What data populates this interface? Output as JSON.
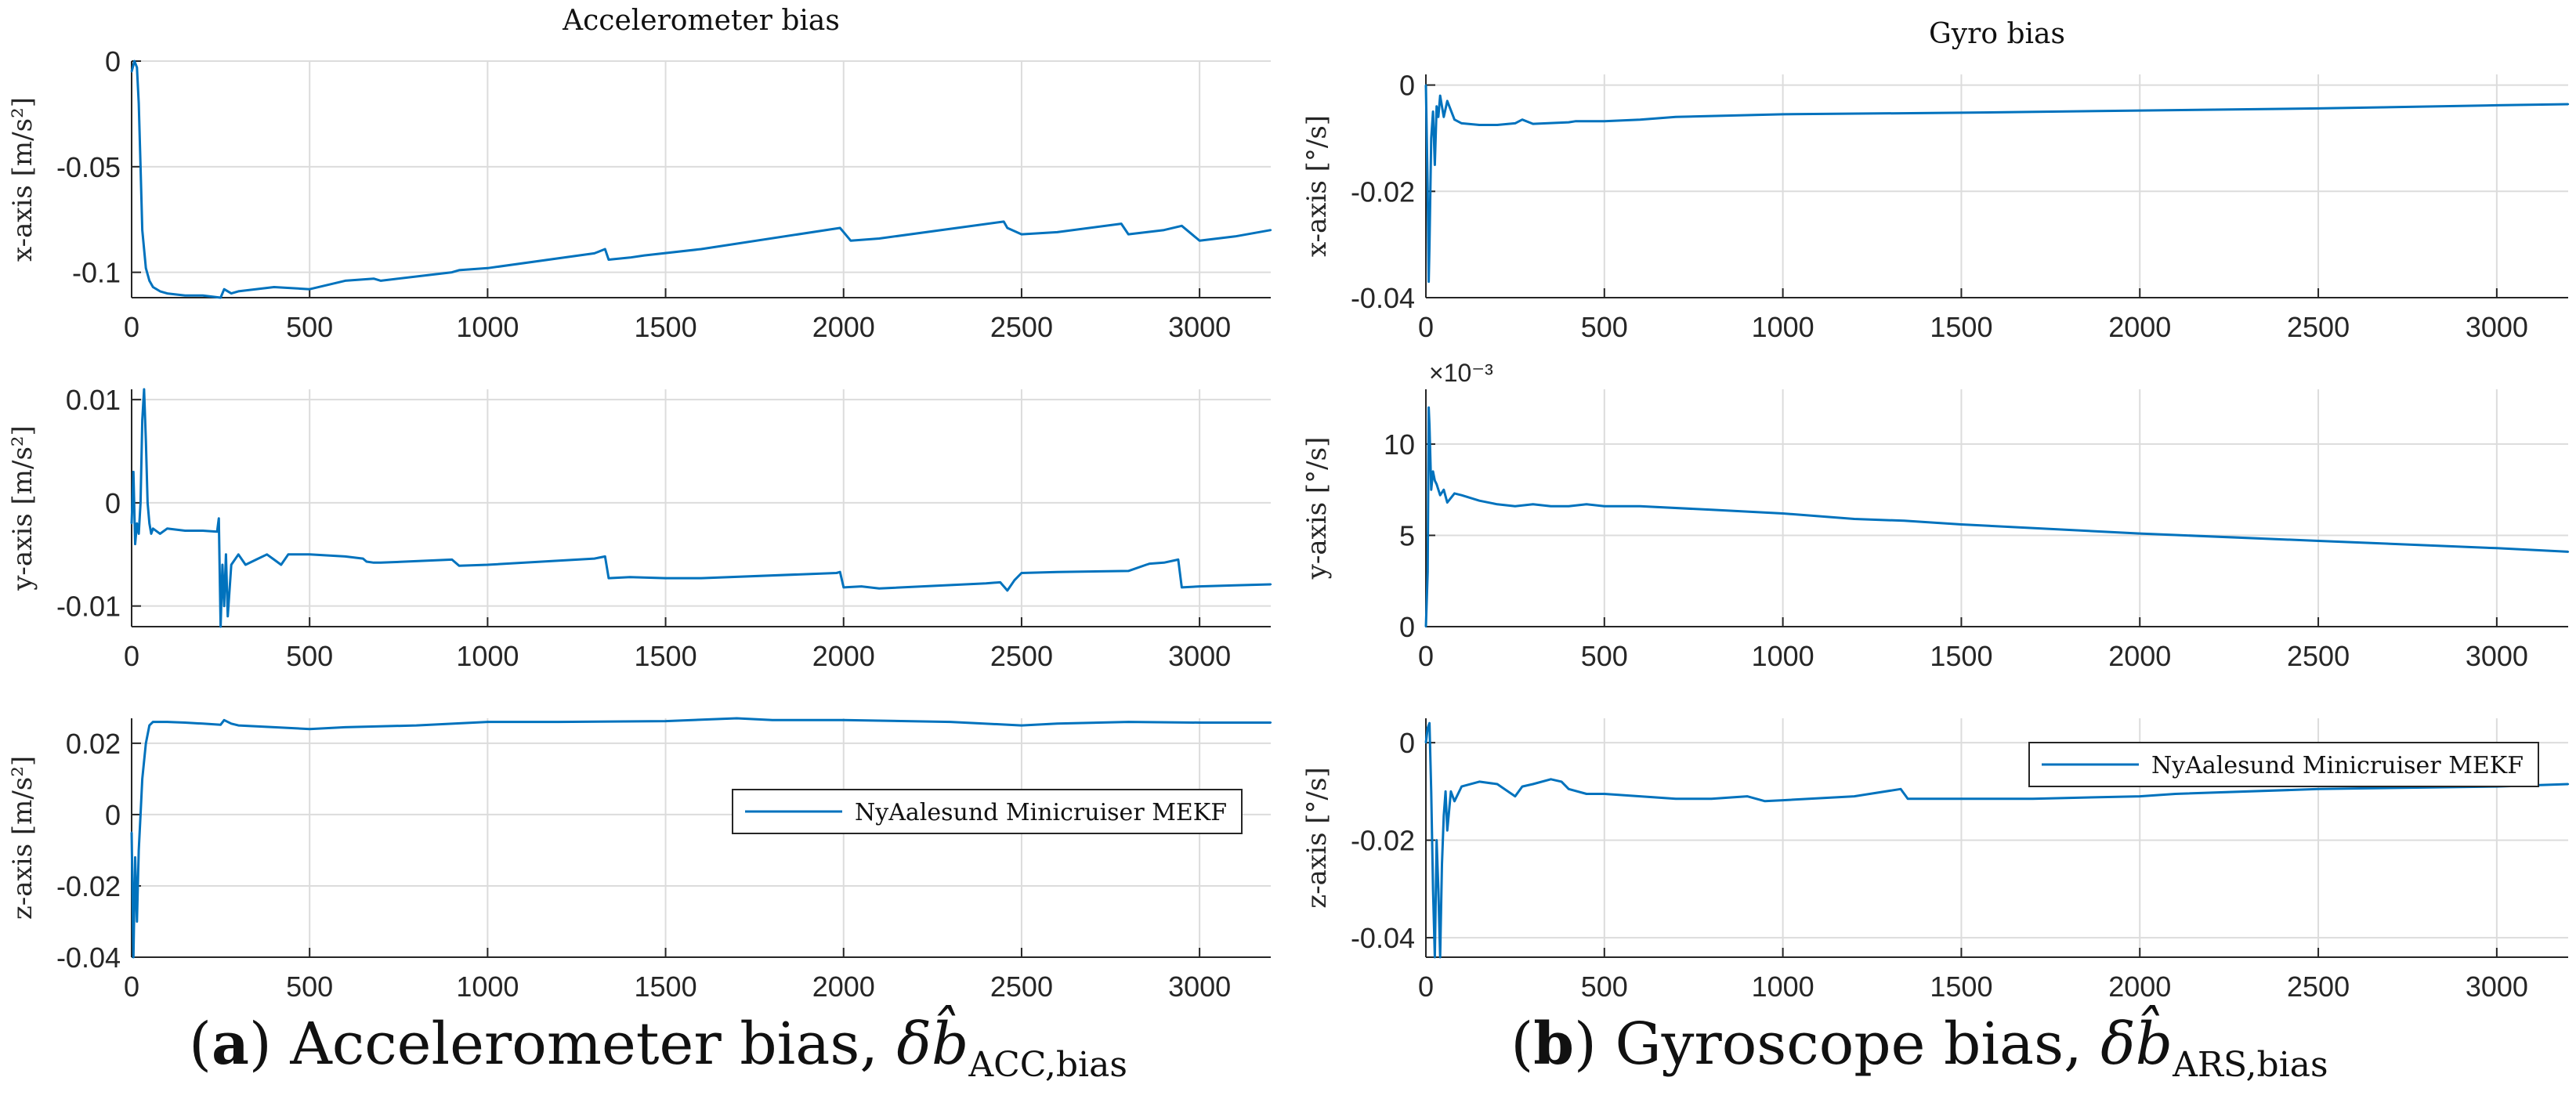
{
  "figure": {
    "captions": [
      {
        "letter": "a",
        "text": "Accelerometer bias, ",
        "symbol": "δb̂",
        "subscript": "ACC,bias"
      },
      {
        "letter": "b",
        "text": "Gyroscope bias, ",
        "symbol": "δb̂",
        "subscript": "ARS,bias"
      }
    ]
  },
  "chart_data": [
    {
      "type": "line",
      "title": "Accelerometer bias",
      "xlabel": "",
      "ylabel": "x-axis [m/s²]",
      "xlim": [
        0,
        3200
      ],
      "ylim": [
        -0.112,
        0
      ],
      "xticks": [
        0,
        500,
        1000,
        1500,
        2000,
        2500,
        3000
      ],
      "xtick_labels": [
        "0",
        "500",
        "1000",
        "1500",
        "2000",
        "2500",
        "3000"
      ],
      "yticks": [
        0,
        -0.05,
        -0.1
      ],
      "ytick_labels": [
        "0",
        "-0.05",
        "-0.1"
      ],
      "grid": true,
      "exponent_label": "",
      "legend": "",
      "series": [
        {
          "name": "NyAalesund Minicruiser MEKF",
          "color": "#0072BD",
          "x": [
            0,
            8,
            15,
            20,
            25,
            30,
            40,
            50,
            60,
            80,
            100,
            150,
            200,
            250,
            260,
            280,
            300,
            400,
            500,
            600,
            680,
            700,
            900,
            920,
            1000,
            1300,
            1330,
            1340,
            1400,
            1440,
            1600,
            1990,
            2000,
            2020,
            2100,
            2450,
            2460,
            2500,
            2600,
            2780,
            2800,
            2900,
            2950,
            3000,
            3100,
            3200
          ],
          "y": [
            -0.005,
            0,
            -0.003,
            -0.02,
            -0.05,
            -0.08,
            -0.098,
            -0.104,
            -0.107,
            -0.109,
            -0.11,
            -0.111,
            -0.111,
            -0.112,
            -0.108,
            -0.11,
            -0.109,
            -0.107,
            -0.108,
            -0.104,
            -0.103,
            -0.104,
            -0.1,
            -0.099,
            -0.098,
            -0.091,
            -0.089,
            -0.094,
            -0.093,
            -0.092,
            -0.089,
            -0.079,
            -0.081,
            -0.085,
            -0.084,
            -0.076,
            -0.079,
            -0.082,
            -0.081,
            -0.077,
            -0.082,
            -0.08,
            -0.078,
            -0.085,
            -0.083,
            -0.08
          ]
        }
      ]
    },
    {
      "type": "line",
      "title": "",
      "xlabel": "",
      "ylabel": "y-axis [m/s²]",
      "xlim": [
        0,
        3200
      ],
      "ylim": [
        -0.012,
        0.011
      ],
      "xticks": [
        0,
        500,
        1000,
        1500,
        2000,
        2500,
        3000
      ],
      "xtick_labels": [
        "0",
        "500",
        "1000",
        "1500",
        "2000",
        "2500",
        "3000"
      ],
      "yticks": [
        0.01,
        0,
        -0.01
      ],
      "ytick_labels": [
        "0.01",
        "0",
        "-0.01"
      ],
      "grid": true,
      "exponent_label": "",
      "legend": "",
      "series": [
        {
          "name": "NyAalesund Minicruiser MEKF",
          "color": "#0072BD",
          "x": [
            0,
            5,
            10,
            15,
            20,
            25,
            30,
            35,
            40,
            45,
            50,
            55,
            60,
            80,
            100,
            150,
            200,
            240,
            245,
            248,
            250,
            255,
            260,
            265,
            270,
            280,
            300,
            320,
            350,
            380,
            400,
            420,
            440,
            500,
            600,
            650,
            660,
            680,
            700,
            900,
            920,
            1000,
            1300,
            1330,
            1340,
            1400,
            1500,
            1600,
            1980,
            1990,
            2000,
            2050,
            2100,
            2400,
            2440,
            2460,
            2480,
            2500,
            2600,
            2800,
            2850,
            2860,
            2900,
            2940,
            2950,
            3000,
            3100,
            3200
          ],
          "y": [
            -0.002,
            0.003,
            -0.004,
            -0.002,
            -0.003,
            0.0,
            0.008,
            0.011,
            0.006,
            0.0,
            -0.002,
            -0.003,
            -0.0025,
            -0.003,
            -0.0025,
            -0.0027,
            -0.0027,
            -0.0028,
            -0.0015,
            -0.008,
            -0.012,
            -0.006,
            -0.01,
            -0.005,
            -0.011,
            -0.006,
            -0.005,
            -0.006,
            -0.0055,
            -0.005,
            -0.0055,
            -0.006,
            -0.005,
            -0.005,
            -0.0052,
            -0.0054,
            -0.0057,
            -0.0058,
            -0.0058,
            -0.0055,
            -0.0061,
            -0.006,
            -0.0054,
            -0.0052,
            -0.0073,
            -0.0072,
            -0.0073,
            -0.0073,
            -0.0068,
            -0.0067,
            -0.0082,
            -0.0081,
            -0.0083,
            -0.0078,
            -0.0077,
            -0.0085,
            -0.0075,
            -0.0068,
            -0.0067,
            -0.0066,
            -0.006,
            -0.0059,
            -0.0058,
            -0.0055,
            -0.0082,
            -0.0081,
            -0.008,
            -0.0079
          ]
        }
      ]
    },
    {
      "type": "line",
      "title": "",
      "xlabel": "",
      "ylabel": "z-axis [m/s²]",
      "xlim": [
        0,
        3200
      ],
      "ylim": [
        -0.04,
        0.027
      ],
      "xticks": [
        0,
        500,
        1000,
        1500,
        2000,
        2500,
        3000
      ],
      "xtick_labels": [
        "0",
        "500",
        "1000",
        "1500",
        "2000",
        "2500",
        "3000"
      ],
      "yticks": [
        0.02,
        0,
        -0.02,
        -0.04
      ],
      "ytick_labels": [
        "0.02",
        "0",
        "-0.02",
        "-0.04"
      ],
      "grid": true,
      "exponent_label": "",
      "legend": "NyAalesund Minicruiser MEKF",
      "series": [
        {
          "name": "NyAalesund Minicruiser MEKF",
          "color": "#0072BD",
          "x": [
            0,
            5,
            10,
            15,
            20,
            25,
            30,
            40,
            50,
            60,
            80,
            100,
            150,
            200,
            250,
            260,
            280,
            300,
            400,
            500,
            600,
            800,
            1000,
            1200,
            1500,
            1700,
            1800,
            2000,
            2300,
            2500,
            2600,
            2800,
            3000,
            3200
          ],
          "y": [
            -0.005,
            -0.04,
            -0.012,
            -0.03,
            -0.01,
            0.0,
            0.01,
            0.02,
            0.025,
            0.026,
            0.026,
            0.026,
            0.0258,
            0.0255,
            0.0252,
            0.0265,
            0.0255,
            0.025,
            0.0245,
            0.024,
            0.0245,
            0.025,
            0.026,
            0.026,
            0.0262,
            0.027,
            0.0265,
            0.0265,
            0.026,
            0.025,
            0.0255,
            0.026,
            0.0258,
            0.0258
          ]
        }
      ]
    },
    {
      "type": "line",
      "title": "Gyro bias",
      "xlabel": "",
      "ylabel": "x-axis [°/s]",
      "xlim": [
        0,
        3200
      ],
      "ylim": [
        -0.04,
        0.002
      ],
      "xticks": [
        0,
        500,
        1000,
        1500,
        2000,
        2500,
        3000
      ],
      "xtick_labels": [
        "0",
        "500",
        "1000",
        "1500",
        "2000",
        "2500",
        "3000"
      ],
      "yticks": [
        0,
        -0.02,
        -0.04
      ],
      "ytick_labels": [
        "0",
        "-0.02",
        "-0.04"
      ],
      "grid": true,
      "exponent_label": "",
      "legend": "",
      "series": [
        {
          "name": "NyAalesund Minicruiser MEKF",
          "color": "#0072BD",
          "x": [
            0,
            5,
            8,
            10,
            15,
            20,
            25,
            30,
            35,
            40,
            50,
            60,
            80,
            100,
            150,
            200,
            250,
            270,
            300,
            400,
            420,
            500,
            600,
            700,
            1000,
            1500,
            2000,
            2500,
            3000,
            3200
          ],
          "y": [
            0.0,
            -0.02,
            -0.037,
            -0.03,
            -0.01,
            -0.005,
            -0.015,
            -0.004,
            -0.006,
            -0.002,
            -0.006,
            -0.003,
            -0.0065,
            -0.0072,
            -0.0075,
            -0.0075,
            -0.0072,
            -0.0065,
            -0.0073,
            -0.007,
            -0.0068,
            -0.0068,
            -0.0065,
            -0.006,
            -0.0055,
            -0.0052,
            -0.0048,
            -0.0044,
            -0.0038,
            -0.0036
          ]
        }
      ]
    },
    {
      "type": "line",
      "title": "",
      "xlabel": "",
      "ylabel": "y-axis [°/s]",
      "xlim": [
        0,
        3200
      ],
      "ylim": [
        0,
        0.013
      ],
      "xticks": [
        0,
        500,
        1000,
        1500,
        2000,
        2500,
        3000
      ],
      "xtick_labels": [
        "0",
        "500",
        "1000",
        "1500",
        "2000",
        "2500",
        "3000"
      ],
      "yticks": [
        0,
        0.005,
        0.01
      ],
      "ytick_labels": [
        "0",
        "5",
        "10"
      ],
      "grid": true,
      "exponent_label": "×10⁻³",
      "legend": "",
      "series": [
        {
          "name": "NyAalesund Minicruiser MEKF",
          "color": "#0072BD",
          "x": [
            0,
            5,
            8,
            10,
            15,
            20,
            25,
            30,
            40,
            50,
            60,
            80,
            100,
            150,
            200,
            250,
            300,
            350,
            400,
            450,
            500,
            600,
            800,
            1000,
            1200,
            1340,
            1500,
            2000,
            2500,
            3000,
            3200
          ],
          "y": [
            0.0,
            0.003,
            0.012,
            0.011,
            0.0075,
            0.0085,
            0.008,
            0.0078,
            0.0072,
            0.0075,
            0.0068,
            0.0073,
            0.0072,
            0.0069,
            0.0067,
            0.0066,
            0.0067,
            0.0066,
            0.0066,
            0.0067,
            0.0066,
            0.0066,
            0.0064,
            0.0062,
            0.0059,
            0.0058,
            0.0056,
            0.0051,
            0.0047,
            0.0043,
            0.0041
          ]
        }
      ]
    },
    {
      "type": "line",
      "title": "",
      "xlabel": "",
      "ylabel": "z-axis [°/s]",
      "xlim": [
        0,
        3200
      ],
      "ylim": [
        -0.044,
        0.005
      ],
      "xticks": [
        0,
        500,
        1000,
        1500,
        2000,
        2500,
        3000
      ],
      "xtick_labels": [
        "0",
        "500",
        "1000",
        "1500",
        "2000",
        "2500",
        "3000"
      ],
      "yticks": [
        0,
        -0.02,
        -0.04
      ],
      "ytick_labels": [
        "0",
        "-0.02",
        "-0.04"
      ],
      "grid": true,
      "exponent_label": "",
      "legend": "NyAalesund Minicruiser MEKF",
      "series": [
        {
          "name": "NyAalesund Minicruiser MEKF",
          "color": "#0072BD",
          "x": [
            0,
            5,
            10,
            15,
            20,
            25,
            30,
            35,
            40,
            45,
            50,
            55,
            60,
            70,
            80,
            100,
            150,
            200,
            250,
            270,
            300,
            350,
            380,
            400,
            450,
            500,
            600,
            700,
            800,
            900,
            950,
            1000,
            1200,
            1330,
            1350,
            1500,
            1700,
            2000,
            2100,
            2500,
            3000,
            3200
          ],
          "y": [
            0.0,
            0.003,
            0.004,
            -0.01,
            -0.03,
            -0.044,
            -0.02,
            -0.03,
            -0.044,
            -0.025,
            -0.015,
            -0.01,
            -0.018,
            -0.01,
            -0.012,
            -0.009,
            -0.008,
            -0.0085,
            -0.011,
            -0.009,
            -0.0085,
            -0.0075,
            -0.008,
            -0.0095,
            -0.0105,
            -0.0105,
            -0.011,
            -0.0115,
            -0.0115,
            -0.011,
            -0.012,
            -0.0118,
            -0.011,
            -0.0095,
            -0.0115,
            -0.0115,
            -0.0115,
            -0.011,
            -0.0105,
            -0.0095,
            -0.009,
            -0.0085
          ]
        }
      ]
    }
  ]
}
